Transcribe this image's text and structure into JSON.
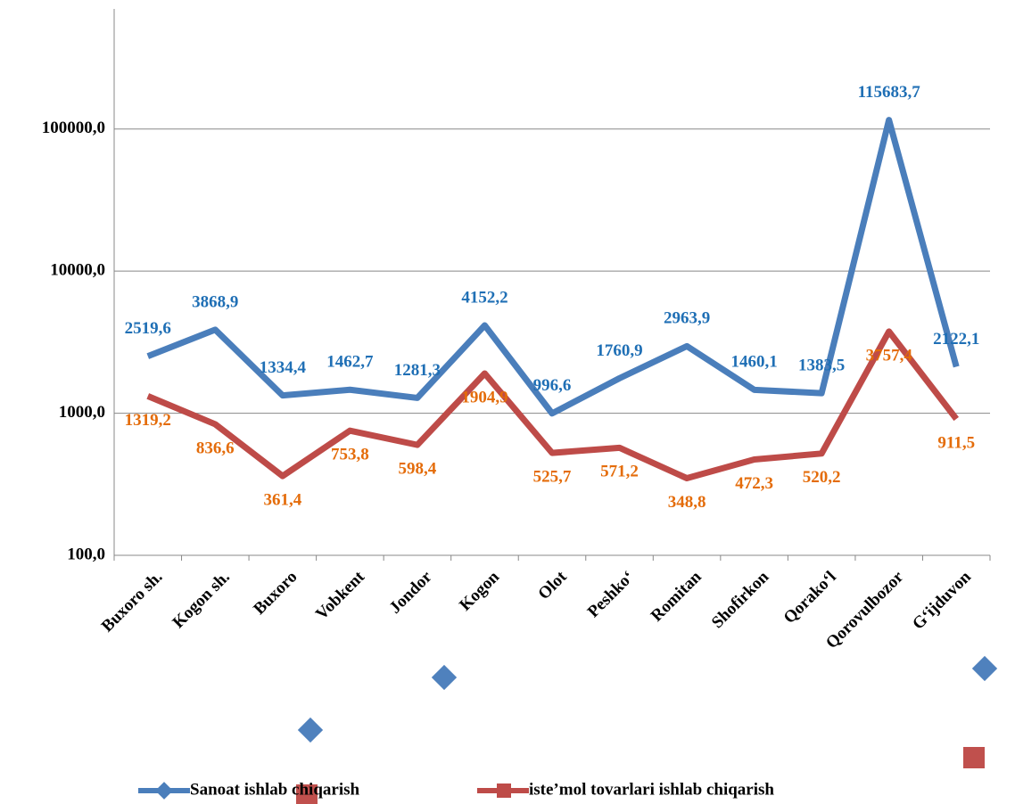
{
  "chart_data": {
    "type": "line",
    "categories": [
      "Buxoro sh.",
      "Kogon sh.",
      "Buxoro",
      "Vobkent",
      "Jondor",
      "Kogon",
      "Olot",
      "Peshkoʻ",
      "Romitan",
      "Shofirkon",
      "Qorakoʻl",
      "Qorovulbozor",
      "Gʻijduvon"
    ],
    "series": [
      {
        "name": "Sanoat ishlab chiqarish",
        "color": "#4a7ebb",
        "values": [
          2519.6,
          3868.9,
          1334.4,
          1462.7,
          1281.3,
          4152.2,
          996.6,
          1760.9,
          2963.9,
          1460.1,
          1383.5,
          115683.7,
          2122.1
        ],
        "value_labels": [
          "2519,6",
          "3868,9",
          "1334,4",
          "1462,7",
          "1281,3",
          "4152,2",
          "996,6",
          "1760,9",
          "2963,9",
          "1460,1",
          "1383,5",
          "115683,7",
          "2122,1"
        ],
        "label_color": "#1f6fb5"
      },
      {
        "name": "iste’mol tovarlari ishlab chiqarish",
        "color": "#be4b48",
        "values": [
          1319.2,
          836.6,
          361.4,
          753.8,
          598.4,
          1904.9,
          525.7,
          571.2,
          348.8,
          472.3,
          520.2,
          3757.4,
          911.5
        ],
        "value_labels": [
          "1319,2",
          "836,6",
          "361,4",
          "753,8",
          "598,4",
          "1904,9",
          "525,7",
          "571,2",
          "348,8",
          "472,3",
          "520,2",
          "3757,4",
          "911,5"
        ],
        "label_color": "#e46c0a"
      }
    ],
    "log_scale": true,
    "ylim": [
      100,
      700000
    ],
    "yticks": [
      {
        "value": 100,
        "label": "100,0"
      },
      {
        "value": 1000,
        "label": "1000,0"
      },
      {
        "value": 10000,
        "label": "10000,0"
      },
      {
        "value": 100000,
        "label": "100000,0"
      }
    ],
    "grid": true,
    "legend": "bottom"
  }
}
